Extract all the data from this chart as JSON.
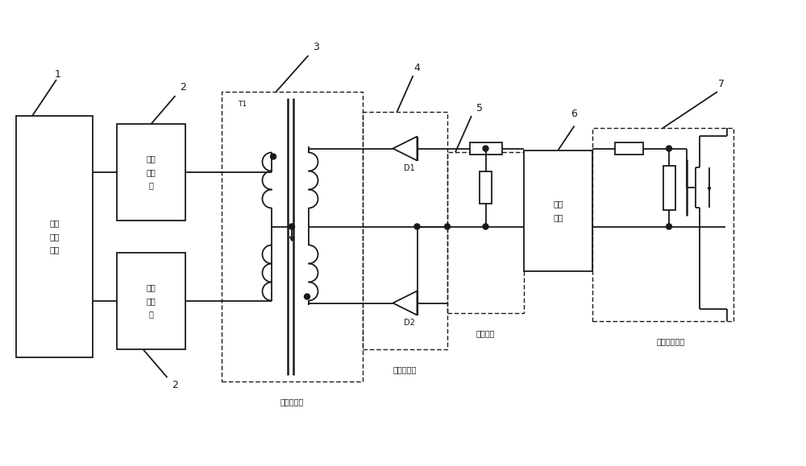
{
  "fig_width": 10.0,
  "fig_height": 5.79,
  "lc": "#1a1a1a",
  "lw": 1.3,
  "font_chinese": "SimSun",
  "labels": {
    "1": "数字\n控制\n芯片",
    "2u": "反相\n图腾\n柱",
    "2l": "反相\n图腾\n柱",
    "3_label": "脉冲变压器",
    "3_T1": "T1",
    "4_label": "或逻辑电路",
    "5_label": "分压电路",
    "6": "驱动\n芯片",
    "7_label": "功率开关电路",
    "D1": "D1",
    "D2": "D2"
  }
}
